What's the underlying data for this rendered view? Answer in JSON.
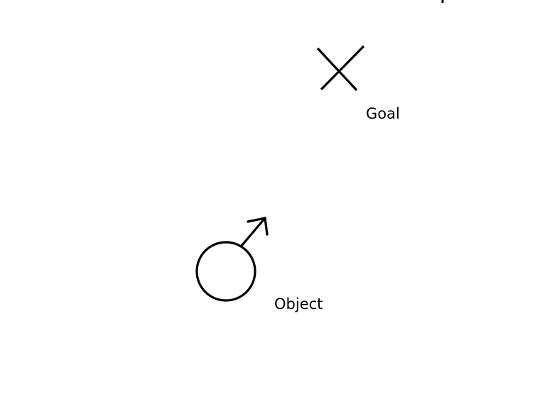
{
  "diagram": {
    "goal": {
      "label": "Goal",
      "marker_icon": "x-mark-icon"
    },
    "object": {
      "label": "Object",
      "shape_icon": "circle-icon",
      "direction_icon": "arrow-up-right-icon"
    },
    "colors": {
      "ink": "#000000",
      "background": "#ffffff"
    }
  }
}
